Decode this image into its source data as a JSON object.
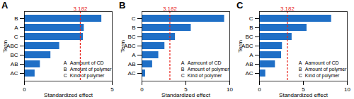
{
  "chart_data": [
    {
      "type": "bar",
      "title": "A",
      "orientation": "horizontal",
      "categories": [
        "B",
        "A",
        "C",
        "ABC",
        "BC",
        "AB",
        "AC"
      ],
      "values": [
        4.4,
        3.4,
        3.35,
        2.0,
        1.5,
        0.9,
        0.6
      ],
      "color": "#1f6fc6",
      "xlim": [
        0,
        5
      ],
      "xticks": [
        0,
        5
      ],
      "x_label": "Standardized effect",
      "y_label": "Term",
      "reference_line": 3.182,
      "reference_color": "#e8211a",
      "annotations": [
        {
          "key": "A",
          "text": "Aamount of CD"
        },
        {
          "key": "B",
          "text": "Amount of polymer"
        },
        {
          "key": "C",
          "text": "Kind of polymer"
        }
      ]
    },
    {
      "type": "bar",
      "title": "B",
      "orientation": "horizontal",
      "categories": [
        "C",
        "B",
        "BC",
        "ABC",
        "A",
        "AB",
        "AC"
      ],
      "values": [
        9.4,
        5.6,
        3.8,
        2.6,
        1.9,
        1.2,
        0.4
      ],
      "color": "#1f6fc6",
      "xlim": [
        0,
        10
      ],
      "xticks": [
        0,
        5,
        10
      ],
      "x_label": "Standardized effect",
      "y_label": "Term",
      "reference_line": 3.182,
      "reference_color": "#e8211a",
      "annotations": [
        {
          "key": "A",
          "text": "Aamount of CD"
        },
        {
          "key": "B",
          "text": "Amount of polymer"
        },
        {
          "key": "C",
          "text": "Kind of polymer"
        }
      ]
    },
    {
      "type": "bar",
      "title": "C",
      "orientation": "horizontal",
      "categories": [
        "C",
        "B",
        "BC",
        "ABC",
        "A",
        "AB",
        "AC"
      ],
      "values": [
        8.2,
        5.4,
        3.7,
        2.6,
        2.5,
        1.8,
        0.7
      ],
      "color": "#1f6fc6",
      "xlim": [
        0,
        10
      ],
      "xticks": [
        0,
        5,
        10
      ],
      "x_label": "Standardized effect",
      "y_label": "Term",
      "reference_line": 3.182,
      "reference_color": "#e8211a",
      "annotations": [
        {
          "key": "A",
          "text": "Aamount of CD"
        },
        {
          "key": "B",
          "text": "Amount of polymer"
        },
        {
          "key": "C",
          "text": "Kind of polymer"
        }
      ]
    }
  ]
}
